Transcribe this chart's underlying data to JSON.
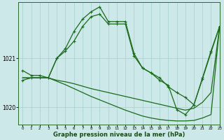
{
  "title": "Graphe pression niveau de la mer (hPa)",
  "background_color": "#cce8e8",
  "plot_bg_color": "#cce8e8",
  "grid_color": "#aad4d4",
  "line_color": "#1a6b1a",
  "ylim": [
    1019.65,
    1022.15
  ],
  "xlim": [
    -0.5,
    23
  ],
  "ytick_values": [
    1020,
    1021
  ],
  "xtick_values": [
    0,
    1,
    2,
    3,
    4,
    5,
    6,
    7,
    8,
    9,
    10,
    11,
    12,
    13,
    14,
    15,
    16,
    17,
    18,
    19,
    20,
    21,
    22,
    23
  ],
  "series": [
    {
      "y": [
        1020.75,
        1020.65,
        1020.65,
        1020.6,
        1021.0,
        1021.2,
        1021.55,
        1021.8,
        1021.95,
        1022.05,
        1021.75,
        1021.75,
        1021.75,
        1021.1,
        1020.8,
        1020.7,
        1020.55,
        1020.45,
        1019.95,
        1019.85,
        1020.05,
        1020.6,
        1021.15,
        1021.65
      ],
      "has_markers": true
    },
    {
      "y": [
        1020.6,
        1020.6,
        1020.6,
        1020.6,
        1020.55,
        1020.52,
        1020.48,
        1020.43,
        1020.38,
        1020.34,
        1020.3,
        1020.26,
        1020.22,
        1020.18,
        1020.14,
        1020.1,
        1020.06,
        1020.02,
        1019.98,
        1019.94,
        1019.98,
        1020.1,
        1020.3,
        1021.65
      ],
      "has_markers": false
    },
    {
      "y": [
        1020.6,
        1020.6,
        1020.6,
        1020.6,
        1020.53,
        1020.46,
        1020.38,
        1020.3,
        1020.22,
        1020.15,
        1020.08,
        1020.01,
        1019.94,
        1019.88,
        1019.82,
        1019.78,
        1019.75,
        1019.73,
        1019.72,
        1019.72,
        1019.73,
        1019.78,
        1019.85,
        1021.65
      ],
      "has_markers": false
    },
    {
      "y": [
        1020.55,
        1020.6,
        1020.6,
        1020.6,
        1021.0,
        1021.15,
        1021.35,
        1021.65,
        1021.85,
        1021.9,
        1021.7,
        1021.7,
        1021.7,
        1021.05,
        1020.8,
        1020.7,
        1020.6,
        1020.42,
        1020.3,
        1020.2,
        1020.05,
        1020.58,
        1021.12,
        1021.65
      ],
      "has_markers": true
    }
  ],
  "marker_style": "+",
  "markersize": 3.5,
  "linewidth": 0.9
}
